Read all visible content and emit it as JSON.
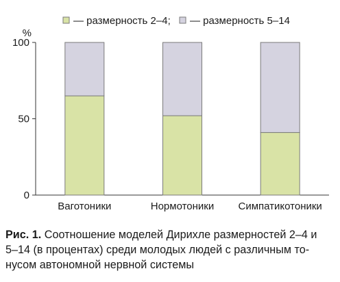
{
  "chart_data": {
    "type": "bar",
    "stacked": true,
    "orientation": "vertical",
    "percent_stacked": true,
    "unit_label": "%",
    "categories": [
      "Ваготоники",
      "Нормотоники",
      "Симпатикотоники"
    ],
    "series": [
      {
        "name": "— размерность 2–4;",
        "values": [
          65,
          52,
          41
        ],
        "color": "#d9e3a6"
      },
      {
        "name": "— размерность 5–14",
        "values": [
          35,
          48,
          59
        ],
        "color": "#d5d3e0"
      }
    ],
    "ylim": [
      0,
      100
    ],
    "yticks": [
      0,
      50,
      100
    ],
    "legend_position": "top",
    "grid": false,
    "bar_stroke_color": "#7a7a7a"
  },
  "caption": {
    "label": "Рис. 1.",
    "lines": [
      " Соотношение моделей Дирихле размерностей 2–4 и",
      "5–14 (в процентах) среди молодых людей с различным то-",
      "нусом автономной нервной системы"
    ]
  }
}
